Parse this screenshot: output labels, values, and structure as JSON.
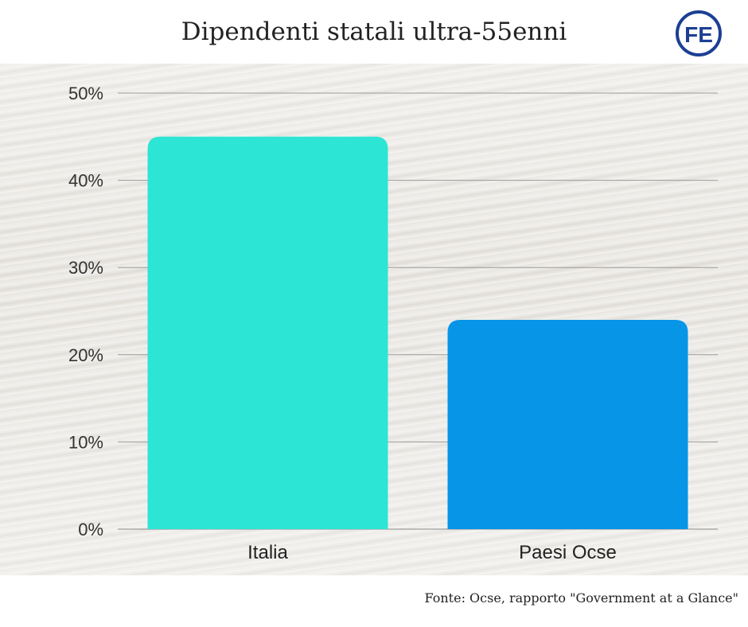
{
  "title": "Dipendenti statali ultra-55enni",
  "logo_text": "FE",
  "footer": "Fonte: Ocse,  rapporto \"Government at a Glance\"",
  "colors": {
    "italia": "#2ce5d4",
    "ocse": "#0795e8",
    "logo": "#1c3f94"
  },
  "chart_data": {
    "type": "bar",
    "categories": [
      "Italia",
      "Paesi Ocse"
    ],
    "values": [
      45,
      24
    ],
    "title": "Dipendenti statali ultra-55enni",
    "xlabel": "",
    "ylabel": "",
    "ylim": [
      0,
      50
    ],
    "yticks": [
      "0%",
      "10%",
      "20%",
      "30%",
      "40%",
      "50%"
    ],
    "grid": true,
    "legend": "none"
  }
}
